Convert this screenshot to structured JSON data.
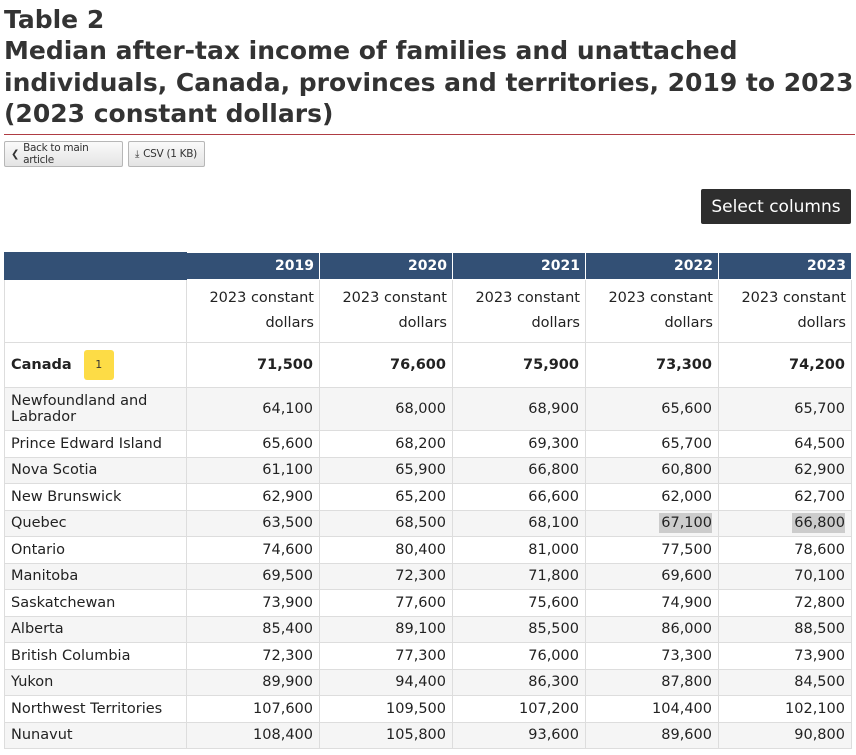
{
  "title": {
    "table_label": "Table 2",
    "caption": "Median after-tax income of families and unattached individuals, Canada, provinces and territories, 2019 to 2023 (2023 constant dollars)"
  },
  "toolbar": {
    "back_label": "Back to main article",
    "back_icon": "chevron-left-icon",
    "csv_label": "CSV (1 KB)",
    "csv_icon": "download-icon"
  },
  "select_columns_label": "Select columns",
  "table": {
    "years": [
      "2019",
      "2020",
      "2021",
      "2022",
      "2023"
    ],
    "unit_line1": "2023 constant",
    "unit_line2": "dollars",
    "footnote_marker": "1",
    "rows": [
      {
        "name": "Canada",
        "values": [
          "71,500",
          "76,600",
          "75,900",
          "73,300",
          "74,200"
        ]
      },
      {
        "name": "Newfoundland and Labrador",
        "values": [
          "64,100",
          "68,000",
          "68,900",
          "65,600",
          "65,700"
        ]
      },
      {
        "name": "Prince Edward Island",
        "values": [
          "65,600",
          "68,200",
          "69,300",
          "65,700",
          "64,500"
        ]
      },
      {
        "name": "Nova Scotia",
        "values": [
          "61,100",
          "65,900",
          "66,800",
          "60,800",
          "62,900"
        ]
      },
      {
        "name": "New Brunswick",
        "values": [
          "62,900",
          "65,200",
          "66,600",
          "62,000",
          "62,700"
        ]
      },
      {
        "name": "Quebec",
        "values": [
          "63,500",
          "68,500",
          "68,100",
          "67,100",
          "66,800"
        ]
      },
      {
        "name": "Ontario",
        "values": [
          "74,600",
          "80,400",
          "81,000",
          "77,500",
          "78,600"
        ]
      },
      {
        "name": "Manitoba",
        "values": [
          "69,500",
          "72,300",
          "71,800",
          "69,600",
          "70,100"
        ]
      },
      {
        "name": "Saskatchewan",
        "values": [
          "73,900",
          "77,600",
          "75,600",
          "74,900",
          "72,800"
        ]
      },
      {
        "name": "Alberta",
        "values": [
          "85,400",
          "89,100",
          "85,500",
          "86,000",
          "88,500"
        ]
      },
      {
        "name": "British Columbia",
        "values": [
          "72,300",
          "77,300",
          "76,000",
          "73,300",
          "73,900"
        ]
      },
      {
        "name": "Yukon",
        "values": [
          "89,900",
          "94,400",
          "86,300",
          "87,800",
          "84,500"
        ]
      },
      {
        "name": "Northwest Territories",
        "values": [
          "107,600",
          "109,500",
          "107,200",
          "104,400",
          "102,100"
        ]
      },
      {
        "name": "Nunavut",
        "values": [
          "108,400",
          "105,800",
          "93,600",
          "89,600",
          "90,800"
        ]
      }
    ]
  }
}
